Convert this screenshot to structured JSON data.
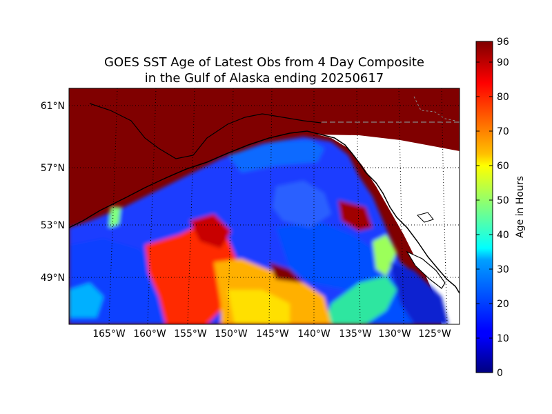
{
  "title_line1": "GOES SST Age of Latest Obs from 4 Day Composite",
  "title_line2": "in the Gulf of Alaska ending 20250617",
  "lat_labels": [
    "61°N",
    "57°N",
    "53°N",
    "49°N"
  ],
  "lon_labels": [
    "165°W",
    "160°W",
    "155°W",
    "150°W",
    "145°W",
    "140°W",
    "135°W",
    "130°W",
    "125°W"
  ],
  "colorbar": {
    "label": "Age in Hours",
    "ticks": [
      "96",
      "90",
      "80",
      "70",
      "60",
      "50",
      "40",
      "30",
      "20",
      "10",
      "0"
    ],
    "min": 0,
    "max": 96
  },
  "colors": {
    "land_saturated": "#800000",
    "ocean_blue": "#1e3cff",
    "no_data": "#ffffff"
  }
}
